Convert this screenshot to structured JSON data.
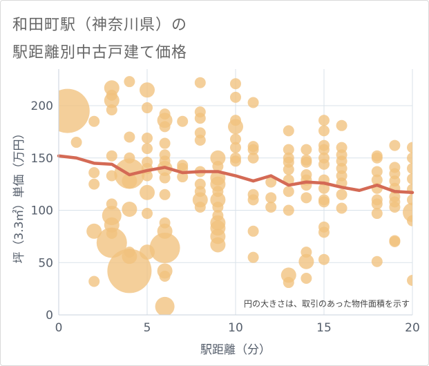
{
  "title_line1": "和田町駅（神奈川県）の",
  "title_line2": "駅距離別中古戸建て価格",
  "chart_data": {
    "type": "scatter",
    "xlabel": "駅距離（分）",
    "ylabel": "坪（3.3㎡）単価（万円）",
    "xlim": [
      0,
      20
    ],
    "ylim": [
      0,
      235
    ],
    "xticks": [
      "0",
      "5",
      "10",
      "15",
      "20"
    ],
    "yticks": [
      "0",
      "50",
      "100",
      "150",
      "200"
    ],
    "note": "円の大きさは、取引のあった物件面積を示す",
    "colors": {
      "bubble": "#f1c27d",
      "line": "#d46a55",
      "grid": "#d9e2ea"
    },
    "points": [
      {
        "x": 0.5,
        "y": 195,
        "s": "xxl"
      },
      {
        "x": 1,
        "y": 165,
        "s": "s"
      },
      {
        "x": 2,
        "y": 185,
        "s": "s"
      },
      {
        "x": 2,
        "y": 136,
        "s": "s"
      },
      {
        "x": 2,
        "y": 125,
        "s": "s"
      },
      {
        "x": 2,
        "y": 80,
        "s": "m"
      },
      {
        "x": 2,
        "y": 32,
        "s": "s"
      },
      {
        "x": 3,
        "y": 217,
        "s": "m"
      },
      {
        "x": 3,
        "y": 210,
        "s": "s"
      },
      {
        "x": 3,
        "y": 205,
        "s": "m"
      },
      {
        "x": 3,
        "y": 196,
        "s": "s"
      },
      {
        "x": 3,
        "y": 152,
        "s": "s"
      },
      {
        "x": 3,
        "y": 133,
        "s": "s"
      },
      {
        "x": 3,
        "y": 106,
        "s": "s"
      },
      {
        "x": 3,
        "y": 95,
        "s": "l"
      },
      {
        "x": 3,
        "y": 86,
        "s": "m"
      },
      {
        "x": 3,
        "y": 78,
        "s": "s"
      },
      {
        "x": 3,
        "y": 69,
        "s": "xl"
      },
      {
        "x": 4,
        "y": 223,
        "s": "s"
      },
      {
        "x": 4,
        "y": 170,
        "s": "s"
      },
      {
        "x": 4,
        "y": 150,
        "s": "s"
      },
      {
        "x": 4,
        "y": 135,
        "s": "xl"
      },
      {
        "x": 4,
        "y": 128,
        "s": "m"
      },
      {
        "x": 4,
        "y": 101,
        "s": "m"
      },
      {
        "x": 4,
        "y": 60,
        "s": "s"
      },
      {
        "x": 4,
        "y": 56,
        "s": "m"
      },
      {
        "x": 4,
        "y": 42,
        "s": "xxl"
      },
      {
        "x": 5,
        "y": 215,
        "s": "m"
      },
      {
        "x": 5,
        "y": 198,
        "s": "s"
      },
      {
        "x": 5,
        "y": 169,
        "s": "s"
      },
      {
        "x": 5,
        "y": 159,
        "s": "s"
      },
      {
        "x": 5,
        "y": 146,
        "s": "s"
      },
      {
        "x": 5,
        "y": 140,
        "s": "s"
      },
      {
        "x": 5,
        "y": 133,
        "s": "s"
      },
      {
        "x": 5,
        "y": 117,
        "s": "m"
      },
      {
        "x": 5,
        "y": 97,
        "s": "s"
      },
      {
        "x": 5,
        "y": 60,
        "s": "m"
      },
      {
        "x": 6,
        "y": 192,
        "s": "s"
      },
      {
        "x": 6,
        "y": 186,
        "s": "m"
      },
      {
        "x": 6,
        "y": 180,
        "s": "s"
      },
      {
        "x": 6,
        "y": 164,
        "s": "s"
      },
      {
        "x": 6,
        "y": 153,
        "s": "s"
      },
      {
        "x": 6,
        "y": 147,
        "s": "s"
      },
      {
        "x": 6,
        "y": 140,
        "s": "m"
      },
      {
        "x": 6,
        "y": 131,
        "s": "s"
      },
      {
        "x": 6,
        "y": 115,
        "s": "s"
      },
      {
        "x": 6,
        "y": 88,
        "s": "s"
      },
      {
        "x": 6,
        "y": 80,
        "s": "m"
      },
      {
        "x": 6,
        "y": 64,
        "s": "xl"
      },
      {
        "x": 6,
        "y": 42,
        "s": "m"
      },
      {
        "x": 6,
        "y": 37,
        "s": "s"
      },
      {
        "x": 6,
        "y": 8,
        "s": "l"
      },
      {
        "x": 7,
        "y": 185,
        "s": "s"
      },
      {
        "x": 7,
        "y": 143,
        "s": "s"
      },
      {
        "x": 7,
        "y": 140,
        "s": "s"
      },
      {
        "x": 7,
        "y": 132,
        "s": "s"
      },
      {
        "x": 8,
        "y": 222,
        "s": "s"
      },
      {
        "x": 8,
        "y": 194,
        "s": "s"
      },
      {
        "x": 8,
        "y": 188,
        "s": "s"
      },
      {
        "x": 8,
        "y": 174,
        "s": "s"
      },
      {
        "x": 8,
        "y": 167,
        "s": "s"
      },
      {
        "x": 8,
        "y": 137,
        "s": "s"
      },
      {
        "x": 8,
        "y": 125,
        "s": "s"
      },
      {
        "x": 8,
        "y": 118,
        "s": "s"
      },
      {
        "x": 8,
        "y": 110,
        "s": "m"
      },
      {
        "x": 8,
        "y": 103,
        "s": "s"
      },
      {
        "x": 9,
        "y": 150,
        "s": "m"
      },
      {
        "x": 9,
        "y": 142,
        "s": "s"
      },
      {
        "x": 9,
        "y": 131,
        "s": "m"
      },
      {
        "x": 9,
        "y": 125,
        "s": "m"
      },
      {
        "x": 9,
        "y": 118,
        "s": "s"
      },
      {
        "x": 9,
        "y": 110,
        "s": "m"
      },
      {
        "x": 9,
        "y": 103,
        "s": "s"
      },
      {
        "x": 9,
        "y": 95,
        "s": "s"
      },
      {
        "x": 9,
        "y": 88,
        "s": "m"
      },
      {
        "x": 9,
        "y": 83,
        "s": "m"
      },
      {
        "x": 9,
        "y": 75,
        "s": "m"
      },
      {
        "x": 9,
        "y": 67,
        "s": "m"
      },
      {
        "x": 10,
        "y": 221,
        "s": "s"
      },
      {
        "x": 10,
        "y": 208,
        "s": "s"
      },
      {
        "x": 10,
        "y": 186,
        "s": "s"
      },
      {
        "x": 10,
        "y": 180,
        "s": "m"
      },
      {
        "x": 10,
        "y": 168,
        "s": "s"
      },
      {
        "x": 10,
        "y": 160,
        "s": "s"
      },
      {
        "x": 10,
        "y": 150,
        "s": "s"
      },
      {
        "x": 10,
        "y": 147,
        "s": "s"
      },
      {
        "x": 11,
        "y": 203,
        "s": "s"
      },
      {
        "x": 11,
        "y": 161,
        "s": "s"
      },
      {
        "x": 11,
        "y": 158,
        "s": "s"
      },
      {
        "x": 11,
        "y": 150,
        "s": "s"
      },
      {
        "x": 11,
        "y": 115,
        "s": "s"
      },
      {
        "x": 11,
        "y": 110,
        "s": "s"
      },
      {
        "x": 11,
        "y": 80,
        "s": "s"
      },
      {
        "x": 11,
        "y": 55,
        "s": "s"
      },
      {
        "x": 12,
        "y": 127,
        "s": "s"
      },
      {
        "x": 12,
        "y": 112,
        "s": "s"
      },
      {
        "x": 12,
        "y": 103,
        "s": "s"
      },
      {
        "x": 13,
        "y": 176,
        "s": "s"
      },
      {
        "x": 13,
        "y": 158,
        "s": "s"
      },
      {
        "x": 13,
        "y": 150,
        "s": "s"
      },
      {
        "x": 13,
        "y": 146,
        "s": "s"
      },
      {
        "x": 13,
        "y": 139,
        "s": "s"
      },
      {
        "x": 13,
        "y": 129,
        "s": "s"
      },
      {
        "x": 13,
        "y": 118,
        "s": "s"
      },
      {
        "x": 13,
        "y": 100,
        "s": "s"
      },
      {
        "x": 13,
        "y": 38,
        "s": "m"
      },
      {
        "x": 13,
        "y": 31,
        "s": "s"
      },
      {
        "x": 14,
        "y": 158,
        "s": "s"
      },
      {
        "x": 14,
        "y": 148,
        "s": "s"
      },
      {
        "x": 14,
        "y": 146,
        "s": "s"
      },
      {
        "x": 14,
        "y": 134,
        "s": "s"
      },
      {
        "x": 14,
        "y": 129,
        "s": "s"
      },
      {
        "x": 14,
        "y": 124,
        "s": "s"
      },
      {
        "x": 14,
        "y": 112,
        "s": "s"
      },
      {
        "x": 14,
        "y": 60,
        "s": "s"
      },
      {
        "x": 14,
        "y": 51,
        "s": "m"
      },
      {
        "x": 14,
        "y": 35,
        "s": "s"
      },
      {
        "x": 15,
        "y": 186,
        "s": "s"
      },
      {
        "x": 15,
        "y": 176,
        "s": "s"
      },
      {
        "x": 15,
        "y": 162,
        "s": "s"
      },
      {
        "x": 15,
        "y": 158,
        "s": "s"
      },
      {
        "x": 15,
        "y": 150,
        "s": "s"
      },
      {
        "x": 15,
        "y": 144,
        "s": "s"
      },
      {
        "x": 15,
        "y": 129,
        "s": "s"
      },
      {
        "x": 15,
        "y": 121,
        "s": "s"
      },
      {
        "x": 15,
        "y": 110,
        "s": "s"
      },
      {
        "x": 15,
        "y": 108,
        "s": "s"
      },
      {
        "x": 15,
        "y": 84,
        "s": "s"
      },
      {
        "x": 15,
        "y": 79,
        "s": "s"
      },
      {
        "x": 15,
        "y": 53,
        "s": "s"
      },
      {
        "x": 16,
        "y": 181,
        "s": "s"
      },
      {
        "x": 16,
        "y": 160,
        "s": "s"
      },
      {
        "x": 16,
        "y": 153,
        "s": "s"
      },
      {
        "x": 16,
        "y": 147,
        "s": "s"
      },
      {
        "x": 16,
        "y": 140,
        "s": "s"
      },
      {
        "x": 16,
        "y": 133,
        "s": "s"
      },
      {
        "x": 16,
        "y": 126,
        "s": "s"
      },
      {
        "x": 16,
        "y": 115,
        "s": "s"
      },
      {
        "x": 16,
        "y": 102,
        "s": "s"
      },
      {
        "x": 18,
        "y": 152,
        "s": "s"
      },
      {
        "x": 18,
        "y": 150,
        "s": "s"
      },
      {
        "x": 18,
        "y": 137,
        "s": "s"
      },
      {
        "x": 18,
        "y": 129,
        "s": "s"
      },
      {
        "x": 18,
        "y": 121,
        "s": "s"
      },
      {
        "x": 18,
        "y": 110,
        "s": "s"
      },
      {
        "x": 18,
        "y": 106,
        "s": "s"
      },
      {
        "x": 18,
        "y": 97,
        "s": "s"
      },
      {
        "x": 18,
        "y": 51,
        "s": "s"
      },
      {
        "x": 19,
        "y": 162,
        "s": "s"
      },
      {
        "x": 19,
        "y": 141,
        "s": "s"
      },
      {
        "x": 19,
        "y": 135,
        "s": "s"
      },
      {
        "x": 19,
        "y": 128,
        "s": "s"
      },
      {
        "x": 19,
        "y": 121,
        "s": "s"
      },
      {
        "x": 19,
        "y": 113,
        "s": "s"
      },
      {
        "x": 19,
        "y": 108,
        "s": "s"
      },
      {
        "x": 19,
        "y": 103,
        "s": "s"
      },
      {
        "x": 19,
        "y": 71,
        "s": "s"
      },
      {
        "x": 19,
        "y": 70,
        "s": "s"
      },
      {
        "x": 20,
        "y": 160,
        "s": "s"
      },
      {
        "x": 20,
        "y": 150,
        "s": "s"
      },
      {
        "x": 20,
        "y": 140,
        "s": "s"
      },
      {
        "x": 20,
        "y": 130,
        "s": "s"
      },
      {
        "x": 20,
        "y": 120,
        "s": "s"
      },
      {
        "x": 20,
        "y": 110,
        "s": "s"
      },
      {
        "x": 20,
        "y": 98,
        "s": "l"
      },
      {
        "x": 20,
        "y": 90,
        "s": "s"
      },
      {
        "x": 20,
        "y": 33,
        "s": "s"
      }
    ],
    "trend": {
      "x": [
        0,
        1,
        2,
        3,
        4,
        5,
        6,
        7,
        8,
        9,
        10,
        11,
        12,
        13,
        14,
        15,
        16,
        17,
        18,
        19,
        20
      ],
      "y": [
        152,
        150,
        145,
        144,
        134,
        138,
        141,
        136,
        137,
        137,
        133,
        128,
        133,
        124,
        127,
        126,
        122,
        119,
        124,
        118,
        117
      ]
    }
  }
}
